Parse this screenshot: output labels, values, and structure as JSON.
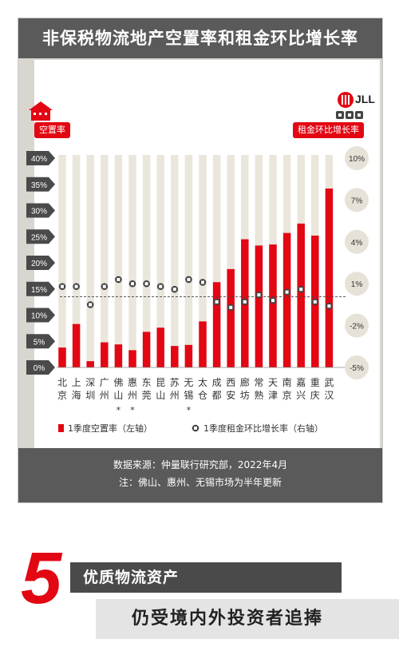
{
  "title": "非保税物流地产空置率和租金环比增长率",
  "logo_text": "JLL",
  "left_pill": "空置率",
  "right_pill": "租金环比增长率",
  "footer": {
    "source": "数据来源：仲量联行研究部，2022年4月",
    "note": "注：佛山、惠州、无锡市场为半年更新"
  },
  "bottom": {
    "number": "5",
    "headline": "优质物流资产",
    "subheadline": "仍受境内外投资者追捧"
  },
  "colors": {
    "bar": "#e30613",
    "header": "#5a5a5a",
    "tick_bg": "#4a4a4a",
    "right_tick_bg": "#e7e2d8"
  },
  "chart_data": {
    "type": "bar",
    "categories": [
      "北京",
      "上海",
      "深圳",
      "广州",
      "佛山",
      "惠州",
      "东莞",
      "昆山",
      "苏州",
      "无锡",
      "太仓",
      "成都",
      "西安",
      "廊坊",
      "常熟",
      "天津",
      "南京",
      "嘉兴",
      "重庆",
      "武汉"
    ],
    "category_lines": [
      [
        "北",
        "京"
      ],
      [
        "上",
        "海"
      ],
      [
        "深",
        "圳"
      ],
      [
        "广",
        "州"
      ],
      [
        "佛",
        "山"
      ],
      [
        "惠",
        "州"
      ],
      [
        "东",
        "莞"
      ],
      [
        "昆",
        "山"
      ],
      [
        "苏",
        "州"
      ],
      [
        "无",
        "锡"
      ],
      [
        "太",
        "仓"
      ],
      [
        "成",
        "都"
      ],
      [
        "西",
        "安"
      ],
      [
        "廊",
        "坊"
      ],
      [
        "常",
        "熟"
      ],
      [
        "天",
        "津"
      ],
      [
        "南",
        "京"
      ],
      [
        "嘉",
        "兴"
      ],
      [
        "重",
        "庆"
      ],
      [
        "武",
        "汉"
      ]
    ],
    "category_marks": [
      "",
      "",
      "",
      "",
      "*",
      "*",
      "",
      "",
      "",
      "*",
      "",
      "",
      "",
      "",
      "",
      "",
      "",
      "",
      "",
      ""
    ],
    "series": [
      {
        "name": "1季度空置率（左轴）",
        "axis": "left",
        "type": "bar",
        "values": [
          3.8,
          8.3,
          1.2,
          4.8,
          4.4,
          3.3,
          6.8,
          7.6,
          4.1,
          4.3,
          8.8,
          16.3,
          18.8,
          24.5,
          23.3,
          23.5,
          25.7,
          27.5,
          25.2,
          34.2
        ]
      },
      {
        "name": "1季度租金环比增长率（右轴）",
        "axis": "right",
        "type": "scatter",
        "values": [
          0.8,
          0.8,
          -0.5,
          0.8,
          1.3,
          1.0,
          1.0,
          0.8,
          0.6,
          1.3,
          1.1,
          -0.3,
          -0.7,
          -0.3,
          0.2,
          -0.2,
          0.4,
          0.6,
          -0.3,
          -0.6
        ]
      }
    ],
    "left_axis": {
      "ticks": [
        "0%",
        "5%",
        "10%",
        "15%",
        "20%",
        "25%",
        "30%",
        "35%",
        "40%"
      ],
      "ylim": [
        0,
        40
      ]
    },
    "right_axis": {
      "ticks": [
        "10%",
        "7%",
        "4%",
        "1%",
        "-2%",
        "-5%"
      ],
      "ylim": [
        -5,
        10
      ]
    },
    "reference_line": "dashed at left-axis 13.5%",
    "legend_placement": "bottom"
  }
}
